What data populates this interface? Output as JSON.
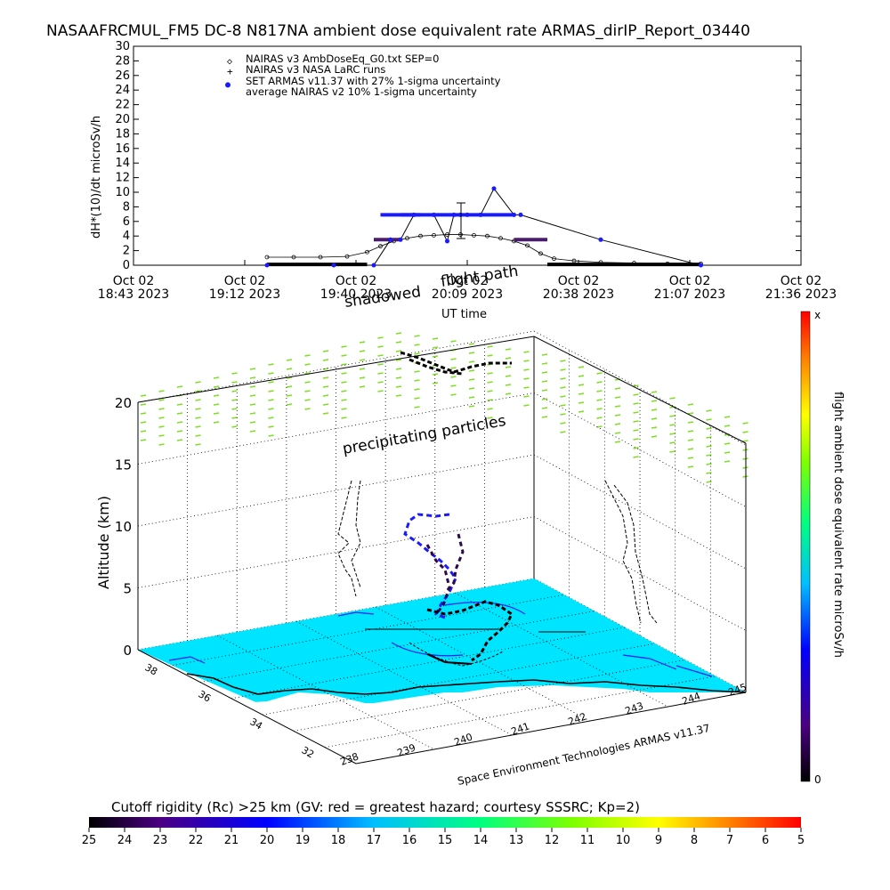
{
  "header": {
    "title": "NASAAFRCMUL_FM5 DC-8   N817NA ambient dose equivalent rate ARMAS_dirIP_Report_03440"
  },
  "chart_data": [
    {
      "type": "scatter",
      "ylabel": "dH*(10)/dt microSv/h",
      "xlabel": "UT time",
      "ylim": [
        0,
        30
      ],
      "y_ticks": [
        "0",
        "2",
        "4",
        "6",
        "8",
        "10",
        "12",
        "14",
        "16",
        "18",
        "20",
        "22",
        "24",
        "26",
        "28",
        "30"
      ],
      "x_ticks": [
        {
          "l1": "Oct 02",
          "l2": "18:43 2023"
        },
        {
          "l1": "Oct 02",
          "l2": "19:12 2023"
        },
        {
          "l1": "Oct 02",
          "l2": "19:40 2023"
        },
        {
          "l1": "Oct 02",
          "l2": "20:09 2023"
        },
        {
          "l1": "Oct 02",
          "l2": "20:38 2023"
        },
        {
          "l1": "Oct 02",
          "l2": "21:07 2023"
        },
        {
          "l1": "Oct 02",
          "l2": "21:36 2023"
        }
      ],
      "legend": [
        {
          "symbol": "◇",
          "text": "NAIRAS v3 AmbDoseEq_G0.txt SEP=0"
        },
        {
          "symbol": "+",
          "text": "NAIRAS v3 NASA LaRC runs"
        },
        {
          "symbol": "●",
          "text": "SET ARMAS v11.37 with 27% 1-sigma uncertainty"
        },
        {
          "symbol": "",
          "text": "average NAIRAS v2 10% 1-sigma uncertainty"
        }
      ],
      "series": [
        {
          "name": "NAIRAS v3 AmbDoseEq_G0.txt SEP=0",
          "x": [
            0.2,
            0.24,
            0.28,
            0.32,
            0.35,
            0.37,
            0.39,
            0.41,
            0.43,
            0.45,
            0.47,
            0.49,
            0.51,
            0.53,
            0.55,
            0.57,
            0.59,
            0.61,
            0.63,
            0.66,
            0.7,
            0.75,
            0.8,
            0.85
          ],
          "y": [
            1.1,
            1.1,
            1.1,
            1.2,
            1.8,
            2.6,
            3.3,
            3.7,
            4.0,
            4.1,
            4.2,
            4.2,
            4.1,
            4.0,
            3.7,
            3.3,
            2.7,
            1.6,
            0.9,
            0.6,
            0.4,
            0.3,
            0.2,
            0.2
          ]
        },
        {
          "name": "SET ARMAS v11.37 with 27% 1-sigma uncertainty",
          "x": [
            0.2,
            0.3,
            0.36,
            0.385,
            0.4,
            0.42,
            0.45,
            0.47,
            0.48,
            0.49,
            0.5,
            0.52,
            0.54,
            0.57,
            0.58,
            0.7,
            0.85
          ],
          "y": [
            0.0,
            0.0,
            0.0,
            3.5,
            3.5,
            6.9,
            6.9,
            3.3,
            6.9,
            6.9,
            6.9,
            6.9,
            10.5,
            6.9,
            6.9,
            3.5,
            0.0
          ]
        }
      ]
    },
    {
      "type": "3d-trajectory",
      "zlabel": "Altitude (km)",
      "z_ticks": [
        "0",
        "5",
        "10",
        "15",
        "20"
      ],
      "lat_ticks": [
        "38",
        "36",
        "34",
        "32"
      ],
      "lon_ticks": [
        "238",
        "239",
        "240",
        "241",
        "242",
        "243",
        "244",
        "245"
      ],
      "annotations": {
        "flight_path": "flight path",
        "shadowed": "shadowed",
        "precipitating": "precipitating particles",
        "credit": "Space Environment Technologies ARMAS v11.37"
      },
      "colorbar": {
        "label": "flight ambient dose equivalent rate microSv/h",
        "top": "x",
        "bottom": "0"
      }
    },
    {
      "type": "colorbar",
      "title": "Cutoff rigidity (Rc) >25 km (GV: red = greatest hazard; courtesy SSSRC; Kp=2)",
      "ticks": [
        "25",
        "24",
        "23",
        "22",
        "21",
        "20",
        "19",
        "18",
        "17",
        "16",
        "15",
        "14",
        "13",
        "12",
        "11",
        "10",
        "9",
        "8",
        "7",
        "6",
        "5"
      ]
    }
  ],
  "colors": {
    "armas": "#1a1aff",
    "nairas_v2": "#4b1c6e",
    "ground": "#00e5ff",
    "precip": "#7ddf1f"
  }
}
